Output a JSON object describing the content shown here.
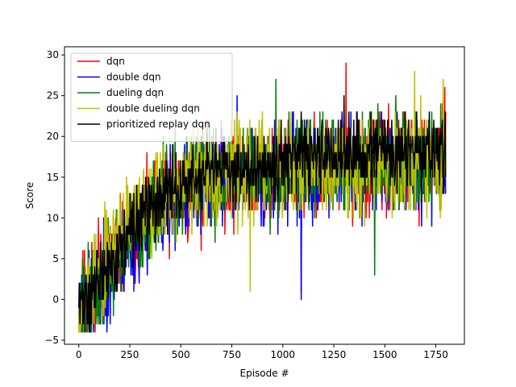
{
  "chart_data": {
    "type": "line",
    "title": "",
    "xlabel": "Episode #",
    "ylabel": "Score",
    "xlim": [
      -70,
      1890
    ],
    "ylim": [
      -5.5,
      31
    ],
    "xticks": [
      0,
      250,
      500,
      750,
      1000,
      1250,
      1500,
      1750
    ],
    "yticks": [
      -5,
      0,
      5,
      10,
      15,
      20,
      25,
      30
    ],
    "grid": false,
    "legend_position": "top-left",
    "episodes": 1800,
    "series": [
      {
        "name": "dqn",
        "color": "#ff0000",
        "trend": [
          [
            0,
            0
          ],
          [
            100,
            2
          ],
          [
            200,
            6
          ],
          [
            300,
            9
          ],
          [
            400,
            11
          ],
          [
            500,
            13
          ],
          [
            600,
            14
          ],
          [
            750,
            15
          ],
          [
            1000,
            15.5
          ],
          [
            1250,
            16
          ],
          [
            1500,
            16.5
          ],
          [
            1800,
            17
          ]
        ],
        "noise": 4.5,
        "seed": 11,
        "extremes": [
          [
            1310,
            29
          ],
          [
            1090,
            1
          ],
          [
            95,
            10
          ]
        ]
      },
      {
        "name": "double dqn",
        "color": "#0000ff",
        "trend": [
          [
            0,
            -1
          ],
          [
            100,
            1
          ],
          [
            200,
            5
          ],
          [
            300,
            8
          ],
          [
            400,
            11
          ],
          [
            500,
            13
          ],
          [
            600,
            14
          ],
          [
            750,
            15
          ],
          [
            1000,
            15.5
          ],
          [
            1250,
            16
          ],
          [
            1500,
            16.5
          ],
          [
            1800,
            16
          ]
        ],
        "noise": 4.5,
        "seed": 23,
        "extremes": [
          [
            1090,
            0
          ],
          [
            30,
            -4
          ],
          [
            775,
            25
          ]
        ]
      },
      {
        "name": "dueling dqn",
        "color": "#008000",
        "trend": [
          [
            0,
            -1
          ],
          [
            100,
            1
          ],
          [
            200,
            6
          ],
          [
            300,
            9
          ],
          [
            400,
            12
          ],
          [
            500,
            13.5
          ],
          [
            600,
            14.5
          ],
          [
            750,
            15.5
          ],
          [
            1000,
            16
          ],
          [
            1250,
            16.5
          ],
          [
            1500,
            17
          ],
          [
            1800,
            17
          ]
        ],
        "noise": 4.5,
        "seed": 37,
        "extremes": [
          [
            965,
            27
          ],
          [
            1450,
            3
          ],
          [
            0,
            -2
          ]
        ]
      },
      {
        "name": "double dueling dqn",
        "color": "#bfbf00",
        "trend": [
          [
            0,
            -1
          ],
          [
            100,
            3
          ],
          [
            200,
            8
          ],
          [
            300,
            11
          ],
          [
            400,
            13
          ],
          [
            500,
            14
          ],
          [
            600,
            15
          ],
          [
            750,
            16
          ],
          [
            1000,
            16
          ],
          [
            1250,
            16.5
          ],
          [
            1500,
            17
          ],
          [
            1800,
            17
          ]
        ],
        "noise": 4.5,
        "seed": 53,
        "extremes": [
          [
            1645,
            28
          ],
          [
            840,
            1
          ],
          [
            1785,
            27
          ]
        ]
      },
      {
        "name": "prioritized replay dqn",
        "color": "#000000",
        "trend": [
          [
            0,
            -1
          ],
          [
            100,
            2
          ],
          [
            200,
            6
          ],
          [
            300,
            10
          ],
          [
            400,
            12.5
          ],
          [
            500,
            14
          ],
          [
            600,
            15
          ],
          [
            750,
            16
          ],
          [
            1000,
            17
          ],
          [
            1250,
            17.5
          ],
          [
            1500,
            18
          ],
          [
            1800,
            18
          ]
        ],
        "noise": 3.3,
        "seed": 71,
        "extremes": [
          [
            50,
            -4
          ],
          [
            1300,
            25
          ]
        ]
      }
    ]
  }
}
